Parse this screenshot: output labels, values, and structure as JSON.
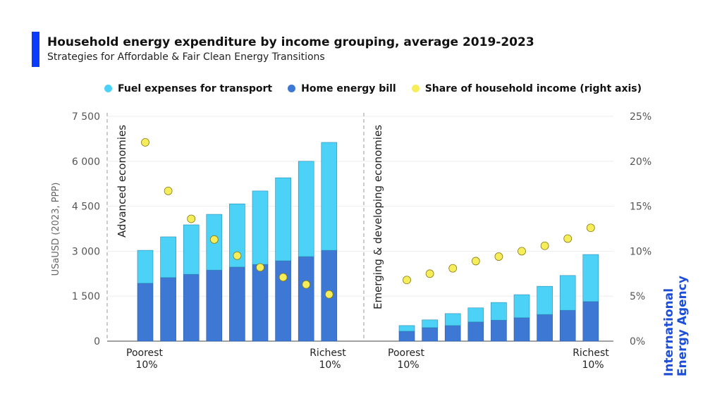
{
  "title": "Household energy expenditure by income grouping, average 2019-2023",
  "subtitle": "Strategies for Affordable & Fair Clean Energy Transitions",
  "logo": [
    "International",
    "Energy Agency"
  ],
  "colors": {
    "accent": "#0a3cff",
    "transport": "#4dd2f7",
    "home": "#3d78d4",
    "share": "#f5ee5a",
    "logo": "#1d4ed8"
  },
  "chart_data": {
    "type": "bar",
    "stacked": true,
    "legend": {
      "placement": "top",
      "entries": [
        "Fuel expenses for transport",
        "Home energy bill",
        "Share of household income (right axis)"
      ]
    },
    "ylabel": "USaUSD (2023, PPP)",
    "ylim": [
      0,
      7500
    ],
    "yticks": [
      "0",
      "1 500",
      "3 000",
      "4 500",
      "6 000",
      "7 500"
    ],
    "ytick_values": [
      0,
      1500,
      3000,
      4500,
      6000,
      7500
    ],
    "y2lim": [
      0,
      25
    ],
    "y2ticks": [
      "0%",
      "5%",
      "10%",
      "15%",
      "20%",
      "25%"
    ],
    "y2tick_values": [
      0,
      5,
      10,
      15,
      20,
      25
    ],
    "grid": true,
    "panels": [
      {
        "label": "Advanced economies",
        "x_start_label": [
          "Poorest",
          "10%"
        ],
        "x_end_label": [
          "Richest",
          "10%"
        ],
        "series": [
          {
            "name": "Home energy bill",
            "values": [
              1930,
              2120,
              2230,
              2370,
              2470,
              2560,
              2680,
              2820,
              3030
            ]
          },
          {
            "name": "Fuel expenses for transport",
            "values": [
              1100,
              1360,
              1650,
              1860,
              2110,
              2450,
              2770,
              3180,
              3600
            ]
          },
          {
            "name": "Share of household income (right axis)",
            "type": "scatter",
            "values": [
              22.1,
              16.7,
              13.6,
              11.3,
              9.5,
              8.2,
              7.1,
              6.3,
              5.2
            ]
          }
        ]
      },
      {
        "label": "Emerging & developing economies",
        "x_start_label": [
          "Poorest",
          "10%"
        ],
        "x_end_label": [
          "Richest",
          "10%"
        ],
        "series": [
          {
            "name": "Home energy bill",
            "values": [
              330,
              450,
              520,
              640,
              700,
              780,
              890,
              1030,
              1320
            ]
          },
          {
            "name": "Fuel expenses for transport",
            "values": [
              190,
              260,
              400,
              470,
              590,
              770,
              940,
              1160,
              1570
            ]
          },
          {
            "name": "Share of household income (right axis)",
            "type": "scatter",
            "values": [
              6.8,
              7.5,
              8.1,
              8.9,
              9.4,
              10.0,
              10.6,
              11.4,
              12.6
            ]
          }
        ]
      }
    ]
  }
}
